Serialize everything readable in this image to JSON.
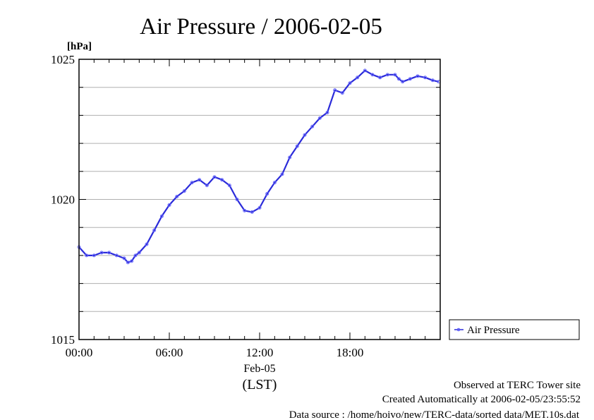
{
  "chart_data": {
    "type": "line",
    "title": "Air Pressure / 2006-02-05",
    "ylabel": "[hPa]",
    "xlabel_date": "Feb-05",
    "xlabel_unit": "(LST)",
    "ylim": [
      1015,
      1025
    ],
    "xlim_hours": [
      0,
      24
    ],
    "y_ticks": [
      "1015",
      "1020",
      "1025"
    ],
    "y_tick_values": [
      1015,
      1020,
      1025
    ],
    "x_ticks": [
      "00:00",
      "06:00",
      "12:00",
      "18:00"
    ],
    "x_tick_hours": [
      0,
      6,
      12,
      18
    ],
    "grid_values": [
      1016,
      1017,
      1018,
      1019,
      1020,
      1021,
      1022,
      1023,
      1024
    ],
    "grid": true,
    "legend_position": "right",
    "color": "#2b2bd9",
    "series": [
      {
        "name": "Air Pressure",
        "x_hours": [
          0,
          0.5,
          1,
          1.5,
          2,
          2.5,
          3,
          3.25,
          3.5,
          3.75,
          4,
          4.5,
          5,
          5.5,
          6,
          6.5,
          7,
          7.5,
          8,
          8.5,
          9,
          9.5,
          10,
          10.5,
          11,
          11.5,
          12,
          12.5,
          13,
          13.5,
          14,
          14.5,
          15,
          15.5,
          16,
          16.5,
          17,
          17.5,
          18,
          18.5,
          19,
          19.5,
          20,
          20.5,
          21,
          21.25,
          21.5,
          22,
          22.5,
          23,
          23.5,
          23.9
        ],
        "values": [
          1018.3,
          1018.0,
          1018.0,
          1018.1,
          1018.1,
          1018.0,
          1017.9,
          1017.75,
          1017.8,
          1018.0,
          1018.1,
          1018.4,
          1018.9,
          1019.4,
          1019.8,
          1020.1,
          1020.3,
          1020.6,
          1020.7,
          1020.5,
          1020.8,
          1020.7,
          1020.5,
          1020.0,
          1019.6,
          1019.55,
          1019.7,
          1020.2,
          1020.6,
          1020.9,
          1021.5,
          1021.9,
          1022.3,
          1022.6,
          1022.9,
          1023.1,
          1023.9,
          1023.8,
          1024.15,
          1024.35,
          1024.6,
          1024.45,
          1024.35,
          1024.45,
          1024.45,
          1024.3,
          1024.2,
          1024.3,
          1024.4,
          1024.35,
          1024.25,
          1024.2
        ]
      }
    ],
    "footer": [
      "Observed at TERC Tower site",
      "Created Automatically at 2006-02-05/23:55:52",
      "Data source : /home/hoivo/new/TERC-data/sorted  data/MET.10s.dat"
    ]
  }
}
